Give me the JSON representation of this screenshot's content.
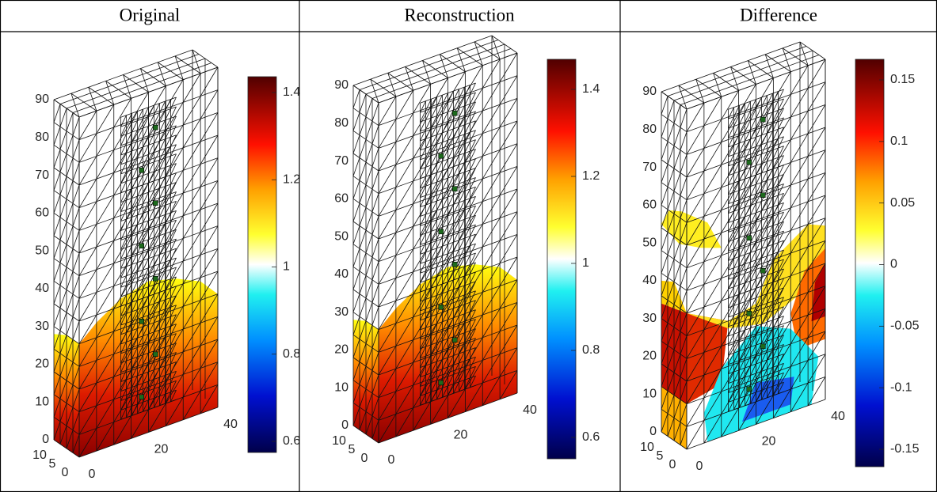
{
  "table": {
    "headers": [
      "Original",
      "Reconstruction",
      "Difference"
    ]
  },
  "panels": [
    {
      "z_ticks": [
        "0",
        "10",
        "20",
        "30",
        "40",
        "50",
        "60",
        "70",
        "80",
        "90"
      ],
      "x_ticks": [
        "0",
        "20",
        "40"
      ],
      "y_ticks": [
        "10",
        "5",
        "0"
      ],
      "colorbar_ticks": [
        "1.4",
        "1.2",
        "1",
        "0.8",
        "0.6"
      ]
    },
    {
      "z_ticks": [
        "0",
        "10",
        "20",
        "30",
        "40",
        "50",
        "60",
        "70",
        "80",
        "90"
      ],
      "x_ticks": [
        "0",
        "20",
        "40"
      ],
      "y_ticks": [
        "10",
        "5",
        "0"
      ],
      "colorbar_ticks": [
        "1.4",
        "1.2",
        "1",
        "0.8",
        "0.6"
      ]
    },
    {
      "z_ticks": [
        "0",
        "10",
        "20",
        "30",
        "40",
        "50",
        "60",
        "70",
        "80",
        "90"
      ],
      "x_ticks": [
        "0",
        "20",
        "40"
      ],
      "y_ticks": [
        "10",
        "5",
        "0"
      ],
      "colorbar_ticks": [
        "0.15",
        "0.1",
        "0.05",
        "0",
        "-0.05",
        "-0.1",
        "-0.15"
      ]
    }
  ]
}
